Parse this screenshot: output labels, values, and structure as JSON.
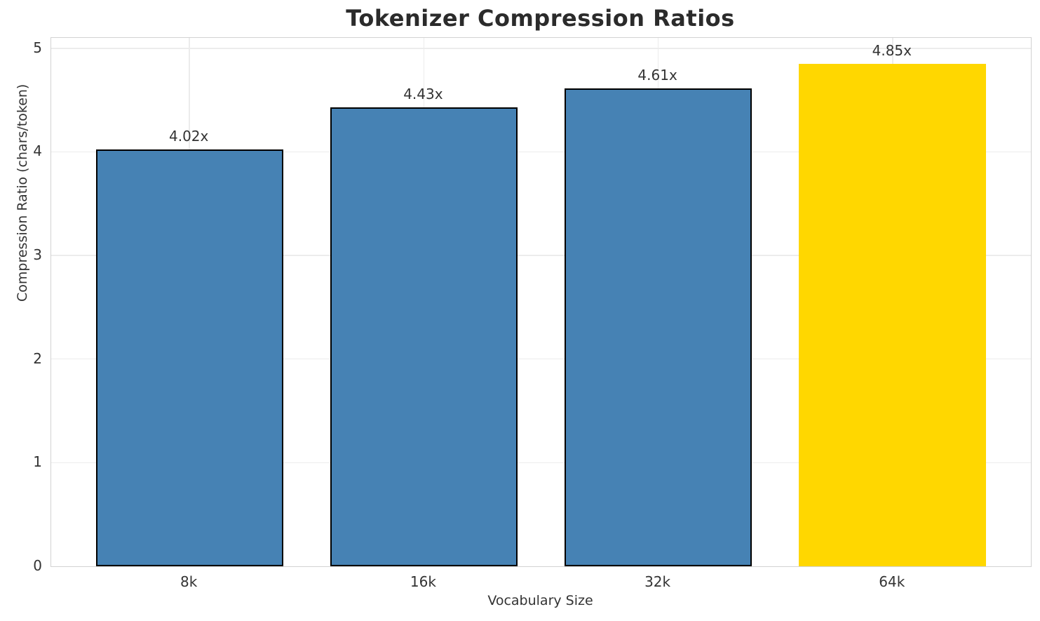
{
  "chart_data": {
    "type": "bar",
    "title": "Tokenizer Compression Ratios",
    "xlabel": "Vocabulary Size",
    "ylabel": "Compression Ratio (chars/token)",
    "categories": [
      "8k",
      "16k",
      "32k",
      "64k"
    ],
    "values": [
      4.02,
      4.43,
      4.61,
      4.85
    ],
    "bar_labels": [
      "4.02x",
      "4.43x",
      "4.61x",
      "4.85x"
    ],
    "ylim": [
      0,
      5.1
    ],
    "yticks": [
      0,
      1,
      2,
      3,
      4,
      5
    ],
    "grid": true,
    "legend": "none",
    "bar_colors": [
      "#4682B4",
      "#4682B4",
      "#4682B4",
      "#FFD700"
    ],
    "bar_edge_colors": [
      "#000000",
      "#000000",
      "#000000",
      "none"
    ],
    "highlight_index": 3
  },
  "colors": {
    "background": "#ffffff",
    "grid": "#ececec",
    "spine": "#d2d2d2",
    "tick_text": "#333333",
    "title_text": "#2b2b2b",
    "bar_blue": "#4682B4",
    "bar_gold": "#FFD700",
    "bar_edge": "#000000"
  }
}
